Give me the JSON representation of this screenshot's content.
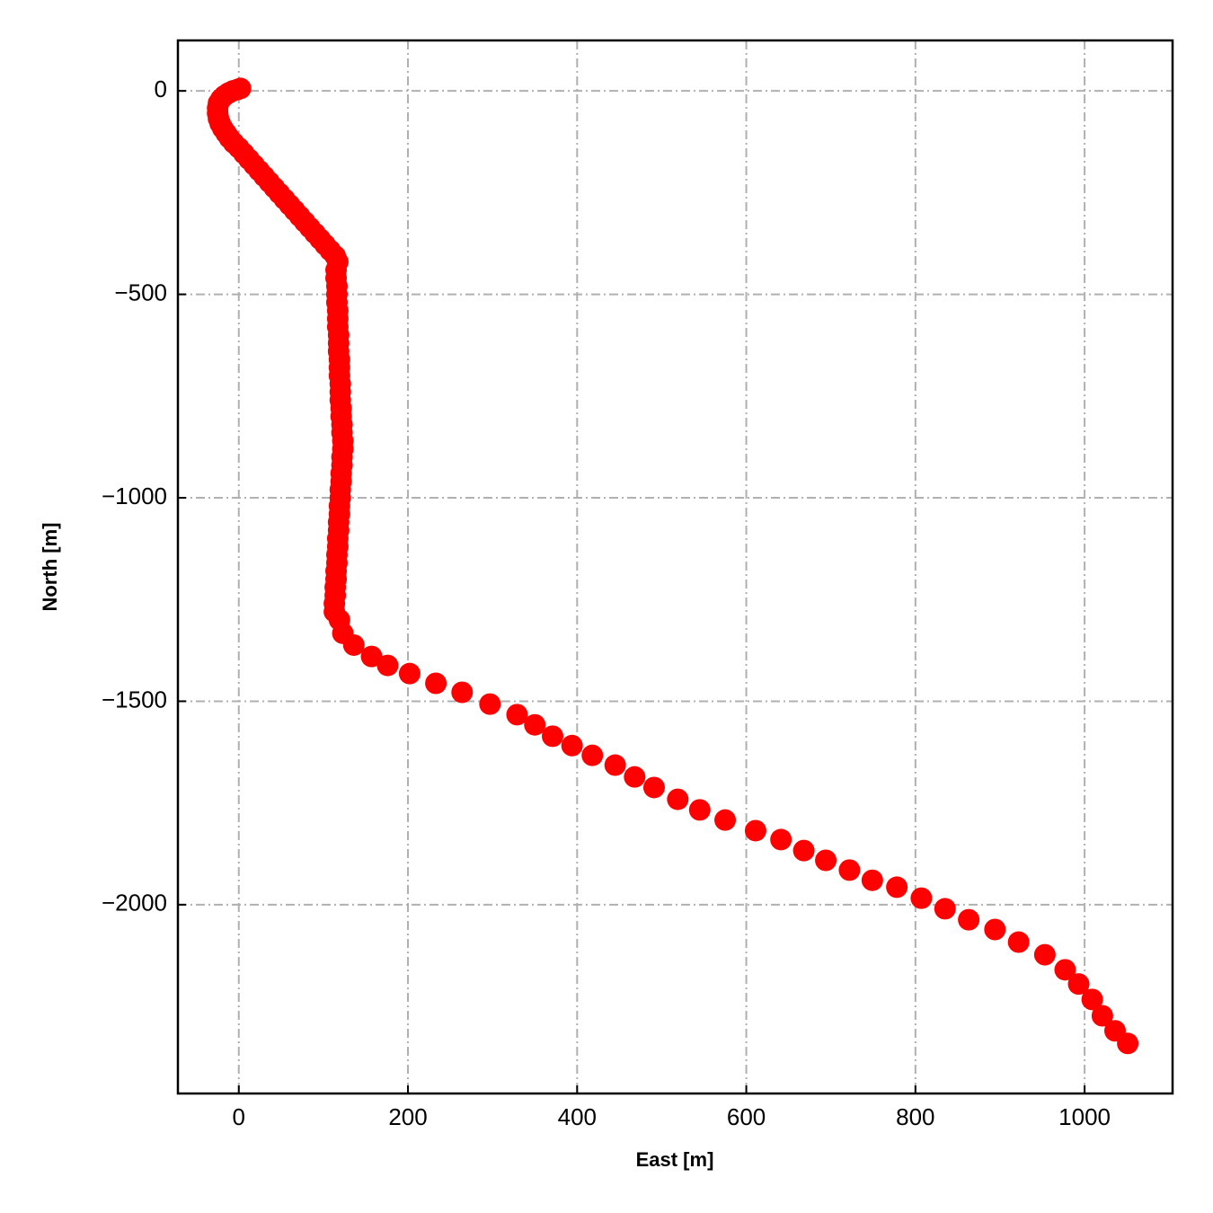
{
  "chart_data": {
    "type": "scatter",
    "xlabel": "East [m]",
    "ylabel": "North [m]",
    "color": "#ff0000",
    "grid": true,
    "xlim": [
      -72,
      1104
    ],
    "ylim": [
      -2464,
      124
    ],
    "xticks": [
      0,
      200,
      400,
      600,
      800,
      1000
    ],
    "yticks": [
      {
        "value": 0,
        "label": "0"
      },
      {
        "value": -500,
        "label": "−500"
      },
      {
        "value": -1000,
        "label": "−1000"
      },
      {
        "value": -1500,
        "label": "−1500"
      },
      {
        "value": -2000,
        "label": "−2000"
      }
    ],
    "x": [
      2,
      -2,
      -7,
      -12,
      -17,
      -21,
      -24,
      -25,
      -25,
      -24,
      -22,
      -19,
      -15,
      -11,
      -6,
      0,
      6,
      12,
      18,
      24,
      30,
      36,
      42,
      48,
      54,
      60,
      66,
      72,
      78,
      84,
      90,
      96,
      102,
      108,
      114,
      117,
      115,
      115,
      116,
      116,
      116,
      117,
      117,
      117,
      118,
      118,
      118,
      119,
      119,
      119,
      120,
      120,
      120,
      121,
      121,
      122,
      122,
      123,
      123,
      122,
      122,
      121,
      121,
      120,
      120,
      119,
      119,
      118,
      118,
      117,
      117,
      116,
      116,
      115,
      115,
      114,
      114,
      113,
      113,
      119,
      123,
      136,
      157,
      176,
      202,
      233,
      264,
      297,
      329,
      350,
      371,
      394,
      418,
      445,
      468,
      491,
      519,
      545,
      575,
      611,
      641,
      668,
      694,
      722,
      749,
      778,
      807,
      835,
      863,
      894,
      922,
      953,
      977,
      993,
      1009,
      1021,
      1036,
      1051
    ],
    "y": [
      6,
      3,
      0,
      -5,
      -12,
      -20,
      -30,
      -42,
      -55,
      -68,
      -80,
      -92,
      -104,
      -116,
      -128,
      -140,
      -154,
      -168,
      -182,
      -196,
      -210,
      -224,
      -238,
      -252,
      -266,
      -280,
      -294,
      -308,
      -322,
      -336,
      -350,
      -364,
      -378,
      -392,
      -406,
      -420,
      -440,
      -460,
      -480,
      -500,
      -520,
      -540,
      -560,
      -580,
      -600,
      -620,
      -640,
      -660,
      -680,
      -700,
      -720,
      -740,
      -760,
      -780,
      -800,
      -820,
      -840,
      -860,
      -880,
      -900,
      -920,
      -940,
      -960,
      -980,
      -1000,
      -1020,
      -1040,
      -1060,
      -1080,
      -1100,
      -1120,
      -1140,
      -1160,
      -1180,
      -1200,
      -1220,
      -1240,
      -1260,
      -1280,
      -1300,
      -1333,
      -1362,
      -1390,
      -1412,
      -1432,
      -1456,
      -1478,
      -1507,
      -1533,
      -1558,
      -1586,
      -1609,
      -1633,
      -1657,
      -1686,
      -1712,
      -1741,
      -1767,
      -1792,
      -1818,
      -1840,
      -1867,
      -1891,
      -1915,
      -1940,
      -1957,
      -1984,
      -2010,
      -2037,
      -2061,
      -2092,
      -2123,
      -2160,
      -2195,
      -2233,
      -2273,
      -2310,
      -2341
    ]
  }
}
